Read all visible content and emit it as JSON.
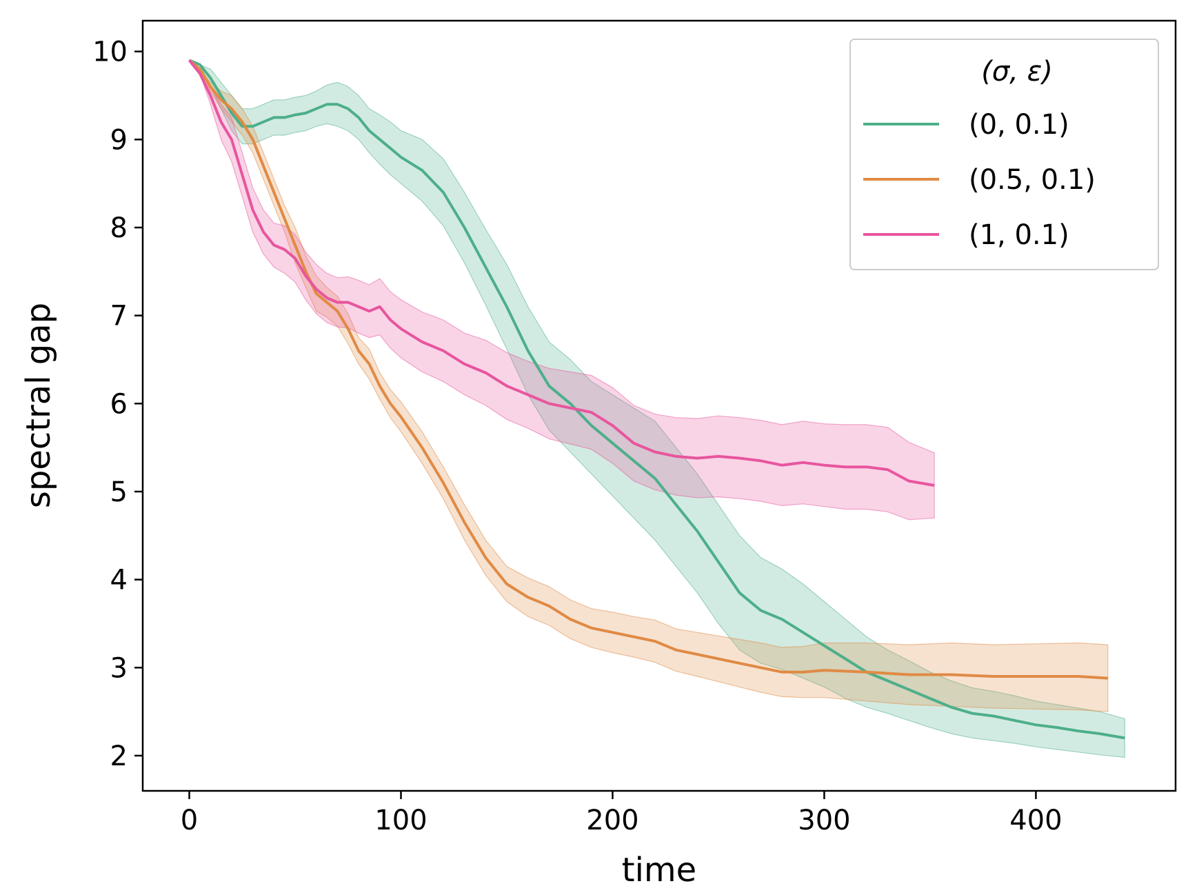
{
  "chart_data": {
    "type": "line",
    "xlabel": "time",
    "ylabel": "spectral gap",
    "xlim": [
      -22,
      466
    ],
    "ylim": [
      1.6,
      10.35
    ],
    "xticks": [
      0,
      100,
      200,
      300,
      400
    ],
    "yticks": [
      2,
      3,
      4,
      5,
      6,
      7,
      8,
      9,
      10
    ],
    "grid": false,
    "legend": {
      "title": "(σ, ε)",
      "placement": "top-right"
    },
    "series": [
      {
        "name": "(0, 0.1)",
        "color": "#4daf8a",
        "band_color": "#4daf8a",
        "x": [
          0,
          5,
          10,
          15,
          20,
          25,
          30,
          35,
          40,
          45,
          50,
          55,
          60,
          65,
          70,
          75,
          80,
          85,
          90,
          95,
          100,
          110,
          120,
          130,
          140,
          150,
          160,
          170,
          180,
          190,
          200,
          210,
          220,
          230,
          240,
          250,
          260,
          270,
          280,
          290,
          300,
          310,
          320,
          330,
          340,
          350,
          360,
          370,
          380,
          390,
          400,
          410,
          420,
          430,
          442
        ],
        "y": [
          9.9,
          9.85,
          9.7,
          9.5,
          9.3,
          9.15,
          9.15,
          9.2,
          9.25,
          9.25,
          9.28,
          9.3,
          9.35,
          9.4,
          9.4,
          9.35,
          9.25,
          9.1,
          9.0,
          8.9,
          8.8,
          8.65,
          8.4,
          8.0,
          7.55,
          7.1,
          6.6,
          6.2,
          6.0,
          5.75,
          5.55,
          5.35,
          5.15,
          4.85,
          4.55,
          4.2,
          3.85,
          3.65,
          3.55,
          3.4,
          3.25,
          3.1,
          2.95,
          2.85,
          2.75,
          2.65,
          2.55,
          2.48,
          2.45,
          2.4,
          2.35,
          2.32,
          2.28,
          2.25,
          2.2
        ],
        "lower": [
          9.9,
          9.85,
          9.6,
          9.35,
          9.1,
          8.95,
          8.95,
          9.0,
          9.05,
          9.05,
          9.08,
          9.1,
          9.15,
          9.18,
          9.15,
          9.1,
          9.0,
          8.85,
          8.72,
          8.6,
          8.5,
          8.3,
          8.02,
          7.6,
          7.12,
          6.62,
          6.1,
          5.7,
          5.45,
          5.2,
          4.95,
          4.7,
          4.45,
          4.15,
          3.85,
          3.5,
          3.2,
          3.05,
          2.98,
          2.88,
          2.78,
          2.65,
          2.55,
          2.48,
          2.4,
          2.32,
          2.25,
          2.2,
          2.17,
          2.14,
          2.1,
          2.07,
          2.04,
          2.01,
          1.98
        ],
        "upper": [
          9.9,
          9.85,
          9.8,
          9.65,
          9.5,
          9.35,
          9.35,
          9.4,
          9.45,
          9.45,
          9.48,
          9.5,
          9.55,
          9.62,
          9.65,
          9.6,
          9.5,
          9.35,
          9.28,
          9.2,
          9.1,
          9.0,
          8.78,
          8.4,
          7.98,
          7.58,
          7.1,
          6.7,
          6.5,
          6.25,
          6.1,
          5.95,
          5.8,
          5.5,
          5.2,
          4.85,
          4.5,
          4.25,
          4.12,
          3.95,
          3.75,
          3.55,
          3.35,
          3.2,
          3.08,
          2.95,
          2.85,
          2.77,
          2.73,
          2.68,
          2.62,
          2.58,
          2.54,
          2.5,
          2.42
        ]
      },
      {
        "name": "(0.5, 0.1)",
        "color": "#e08a45",
        "band_color": "#e08a45",
        "x": [
          0,
          5,
          10,
          15,
          20,
          25,
          30,
          35,
          40,
          45,
          50,
          55,
          60,
          65,
          70,
          75,
          80,
          85,
          90,
          95,
          100,
          110,
          120,
          130,
          140,
          150,
          160,
          170,
          180,
          190,
          200,
          210,
          220,
          230,
          240,
          250,
          260,
          270,
          280,
          290,
          300,
          320,
          340,
          360,
          380,
          400,
          420,
          434
        ],
        "y": [
          9.9,
          9.8,
          9.6,
          9.45,
          9.35,
          9.2,
          9.0,
          8.7,
          8.4,
          8.1,
          7.8,
          7.5,
          7.25,
          7.15,
          7.05,
          6.85,
          6.6,
          6.45,
          6.2,
          6.0,
          5.85,
          5.5,
          5.1,
          4.65,
          4.25,
          3.95,
          3.8,
          3.7,
          3.55,
          3.45,
          3.4,
          3.35,
          3.3,
          3.2,
          3.15,
          3.1,
          3.05,
          3.0,
          2.95,
          2.95,
          2.97,
          2.95,
          2.92,
          2.92,
          2.9,
          2.9,
          2.9,
          2.88
        ],
        "lower": [
          9.9,
          9.8,
          9.55,
          9.35,
          9.2,
          9.05,
          8.85,
          8.55,
          8.25,
          7.95,
          7.6,
          7.32,
          7.05,
          6.98,
          6.88,
          6.68,
          6.45,
          6.28,
          6.05,
          5.84,
          5.68,
          5.32,
          4.92,
          4.45,
          4.05,
          3.75,
          3.58,
          3.48,
          3.33,
          3.23,
          3.17,
          3.12,
          3.06,
          2.96,
          2.9,
          2.84,
          2.78,
          2.72,
          2.67,
          2.66,
          2.66,
          2.62,
          2.58,
          2.56,
          2.54,
          2.53,
          2.52,
          2.5
        ],
        "upper": [
          9.9,
          9.8,
          9.65,
          9.55,
          9.5,
          9.35,
          9.15,
          8.85,
          8.55,
          8.25,
          8.0,
          7.68,
          7.45,
          7.32,
          7.22,
          7.02,
          6.75,
          6.62,
          6.35,
          6.16,
          6.02,
          5.68,
          5.28,
          4.85,
          4.45,
          4.15,
          4.02,
          3.92,
          3.77,
          3.67,
          3.63,
          3.58,
          3.54,
          3.44,
          3.4,
          3.36,
          3.32,
          3.28,
          3.23,
          3.24,
          3.28,
          3.28,
          3.26,
          3.28,
          3.26,
          3.27,
          3.28,
          3.26
        ]
      },
      {
        "name": "(1, 0.1)",
        "color": "#e8559e",
        "band_color": "#e8559e",
        "x": [
          0,
          5,
          10,
          15,
          20,
          25,
          30,
          35,
          40,
          45,
          50,
          55,
          60,
          65,
          70,
          75,
          80,
          85,
          90,
          95,
          100,
          110,
          120,
          130,
          140,
          150,
          160,
          170,
          180,
          190,
          200,
          210,
          220,
          230,
          240,
          250,
          260,
          270,
          280,
          290,
          300,
          310,
          320,
          330,
          340,
          352
        ],
        "y": [
          9.9,
          9.75,
          9.5,
          9.2,
          9.0,
          8.6,
          8.2,
          7.95,
          7.8,
          7.75,
          7.65,
          7.45,
          7.3,
          7.2,
          7.15,
          7.15,
          7.1,
          7.05,
          7.1,
          6.95,
          6.85,
          6.7,
          6.6,
          6.45,
          6.35,
          6.2,
          6.1,
          6.0,
          5.95,
          5.9,
          5.75,
          5.55,
          5.45,
          5.4,
          5.38,
          5.4,
          5.38,
          5.35,
          5.3,
          5.33,
          5.3,
          5.28,
          5.28,
          5.25,
          5.12,
          5.07
        ],
        "lower": [
          9.9,
          9.75,
          9.4,
          9.0,
          8.75,
          8.35,
          7.95,
          7.7,
          7.55,
          7.48,
          7.38,
          7.18,
          7.02,
          6.92,
          6.87,
          6.86,
          6.8,
          6.75,
          6.78,
          6.63,
          6.52,
          6.36,
          6.25,
          6.1,
          5.98,
          5.82,
          5.72,
          5.6,
          5.54,
          5.48,
          5.32,
          5.12,
          5.02,
          4.96,
          4.93,
          4.94,
          4.92,
          4.89,
          4.84,
          4.86,
          4.83,
          4.8,
          4.8,
          4.77,
          4.68,
          4.7
        ],
        "upper": [
          9.9,
          9.75,
          9.6,
          9.4,
          9.25,
          8.85,
          8.45,
          8.2,
          8.05,
          8.02,
          7.92,
          7.72,
          7.58,
          7.48,
          7.43,
          7.44,
          7.4,
          7.35,
          7.42,
          7.27,
          7.18,
          7.04,
          6.95,
          6.8,
          6.72,
          6.58,
          6.48,
          6.4,
          6.36,
          6.32,
          6.18,
          5.98,
          5.88,
          5.84,
          5.83,
          5.86,
          5.84,
          5.81,
          5.76,
          5.8,
          5.77,
          5.76,
          5.76,
          5.73,
          5.56,
          5.44
        ]
      }
    ]
  }
}
